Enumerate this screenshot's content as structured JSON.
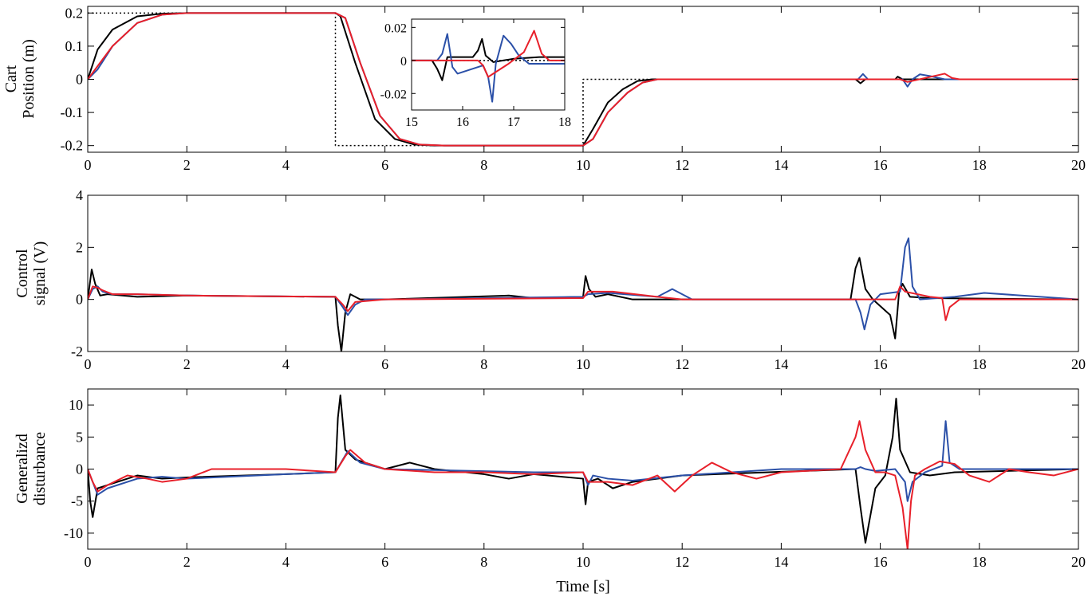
{
  "chart_data": [
    {
      "id": "position",
      "type": "line",
      "ylabel_lines": [
        "Cart",
        "Position (m)"
      ],
      "xlim": [
        0,
        20
      ],
      "ylim": [
        -0.22,
        0.22
      ],
      "xticks": [
        0,
        2,
        4,
        6,
        8,
        10,
        12,
        14,
        16,
        18,
        20
      ],
      "xtick_labels": [
        "0",
        "2",
        "4",
        "6",
        "8",
        "10",
        "12",
        "14",
        "16",
        "18",
        "20"
      ],
      "yticks": [
        -0.2,
        -0.1,
        0,
        0.1,
        0.2
      ],
      "ytick_labels": [
        "-0.2",
        "-0.1",
        "0",
        "0.1",
        "0.2"
      ],
      "series": [
        {
          "name": "reference",
          "color": "#000000",
          "dashed": true,
          "x": [
            0,
            5,
            5,
            10,
            10,
            20
          ],
          "y": [
            0.2,
            0.2,
            -0.2,
            -0.2,
            0,
            0
          ]
        },
        {
          "name": "black",
          "color": "#000000",
          "x": [
            0,
            0.2,
            0.5,
            1.0,
            1.5,
            2,
            5,
            5.1,
            5.4,
            5.8,
            6.2,
            6.6,
            7.0,
            10,
            10.2,
            10.5,
            10.8,
            11.1,
            11.4,
            15.5,
            15.6,
            15.7,
            16.3,
            16.35,
            16.45,
            17,
            20
          ],
          "y": [
            0,
            0.09,
            0.15,
            0.19,
            0.198,
            0.2,
            0.2,
            0.19,
            0.05,
            -0.12,
            -0.18,
            -0.197,
            -0.2,
            -0.2,
            -0.15,
            -0.07,
            -0.03,
            -0.005,
            0,
            0,
            -0.012,
            0,
            0,
            0.008,
            0,
            0,
            0
          ]
        },
        {
          "name": "blue",
          "color": "#2b50a8",
          "x": [
            0,
            0.2,
            0.5,
            1.0,
            1.5,
            2,
            5,
            5.2,
            5.5,
            5.9,
            6.3,
            6.7,
            7.2,
            10,
            10.2,
            10.5,
            10.9,
            11.2,
            11.5,
            15.55,
            15.65,
            15.75,
            16.45,
            16.55,
            16.65,
            16.8,
            17.0,
            17.3,
            20
          ],
          "y": [
            0,
            0.03,
            0.1,
            0.17,
            0.195,
            0.2,
            0.2,
            0.185,
            0.05,
            -0.11,
            -0.18,
            -0.197,
            -0.2,
            -0.2,
            -0.18,
            -0.1,
            -0.04,
            -0.01,
            0,
            0,
            0.016,
            0,
            0,
            -0.022,
            0,
            0.015,
            0.01,
            0,
            0
          ]
        },
        {
          "name": "red",
          "color": "#e8202a",
          "x": [
            0,
            0.2,
            0.5,
            1.0,
            1.5,
            2,
            5,
            5.2,
            5.5,
            5.9,
            6.3,
            6.7,
            7.2,
            10,
            10.2,
            10.5,
            10.9,
            11.2,
            11.5,
            16.4,
            16.55,
            16.7,
            17.3,
            17.45,
            17.6,
            17.9,
            20
          ],
          "y": [
            0,
            0.04,
            0.1,
            0.17,
            0.195,
            0.2,
            0.2,
            0.185,
            0.05,
            -0.11,
            -0.18,
            -0.197,
            -0.2,
            -0.2,
            -0.18,
            -0.1,
            -0.04,
            -0.01,
            0,
            0,
            -0.008,
            -0.003,
            0.017,
            0.004,
            0,
            0,
            0
          ]
        }
      ],
      "inset": {
        "xlim": [
          15,
          18
        ],
        "ylim": [
          -0.03,
          0.025
        ],
        "xticks": [
          15,
          16,
          17,
          18
        ],
        "xtick_labels": [
          "15",
          "16",
          "17",
          "18"
        ],
        "yticks": [
          -0.02,
          0,
          0.02
        ],
        "ytick_labels": [
          "-0.02",
          "0",
          "0.02"
        ],
        "series": [
          {
            "name": "reference",
            "color": "#000000",
            "dashed": true,
            "x": [
              15,
              18
            ],
            "y": [
              0,
              0
            ]
          },
          {
            "name": "black",
            "color": "#000000",
            "x": [
              15,
              15.4,
              15.5,
              15.6,
              15.7,
              15.8,
              16.2,
              16.3,
              16.38,
              16.45,
              16.6,
              17.0,
              17.5,
              18
            ],
            "y": [
              0,
              0,
              -0.005,
              -0.012,
              0.002,
              0.002,
              0.002,
              0.006,
              0.013,
              0.003,
              -0.001,
              0.001,
              0.002,
              0.002
            ]
          },
          {
            "name": "blue",
            "color": "#2b50a8",
            "x": [
              15,
              15.5,
              15.6,
              15.7,
              15.8,
              15.9,
              16.4,
              16.5,
              16.58,
              16.65,
              16.8,
              16.95,
              17.1,
              17.3,
              17.6,
              18
            ],
            "y": [
              0,
              0,
              0.004,
              0.016,
              -0.004,
              -0.008,
              -0.003,
              -0.01,
              -0.025,
              -0.002,
              0.015,
              0.01,
              0.003,
              -0.002,
              -0.002,
              -0.002
            ]
          },
          {
            "name": "red",
            "color": "#e8202a",
            "x": [
              15,
              16.3,
              16.4,
              16.5,
              16.6,
              16.9,
              17.2,
              17.4,
              17.55,
              17.7,
              18
            ],
            "y": [
              0,
              0,
              -0.003,
              -0.01,
              -0.008,
              -0.002,
              0.005,
              0.018,
              0.004,
              0,
              0
            ]
          }
        ]
      }
    },
    {
      "id": "control",
      "type": "line",
      "ylabel_lines": [
        "Control",
        "signal (V)"
      ],
      "xlim": [
        0,
        20
      ],
      "ylim": [
        -2,
        4
      ],
      "xticks": [
        0,
        2,
        4,
        6,
        8,
        10,
        12,
        14,
        16,
        18,
        20
      ],
      "xtick_labels": [
        "0",
        "2",
        "4",
        "6",
        "8",
        "10",
        "12",
        "14",
        "16",
        "18",
        "20"
      ],
      "yticks": [
        -2,
        0,
        2,
        4
      ],
      "ytick_labels": [
        "-2",
        "0",
        "2",
        "4"
      ],
      "series": [
        {
          "name": "black",
          "color": "#000000",
          "x": [
            0,
            0.08,
            0.15,
            0.25,
            0.4,
            1,
            2,
            5,
            5.05,
            5.12,
            5.2,
            5.3,
            5.5,
            6,
            8.5,
            9,
            10,
            10.05,
            10.12,
            10.25,
            10.5,
            11,
            12,
            15.4,
            15.5,
            15.58,
            15.7,
            15.85,
            16.2,
            16.3,
            16.38,
            16.45,
            16.6,
            17,
            20
          ],
          "y": [
            0,
            1.15,
            0.6,
            0.15,
            0.2,
            0.1,
            0.15,
            0.1,
            -1,
            -2,
            -0.5,
            0.2,
            0,
            0,
            0.15,
            0.05,
            0.1,
            0.9,
            0.4,
            0.1,
            0.2,
            0,
            0,
            0,
            1.2,
            1.6,
            0.4,
            0,
            -0.6,
            -1.5,
            0.3,
            0.6,
            0.1,
            0.05,
            0
          ]
        },
        {
          "name": "blue",
          "color": "#2b50a8",
          "x": [
            0,
            0.1,
            0.2,
            0.3,
            0.5,
            1,
            2,
            5,
            5.15,
            5.25,
            5.4,
            5.6,
            6,
            10,
            10.1,
            10.5,
            11.5,
            11.8,
            12.2,
            15.5,
            15.6,
            15.68,
            15.8,
            16,
            16.4,
            16.5,
            16.57,
            16.65,
            16.8,
            17.5,
            18.1,
            20
          ],
          "y": [
            0,
            0.4,
            0.5,
            0.3,
            0.2,
            0.2,
            0.15,
            0.1,
            -0.3,
            -0.6,
            -0.2,
            0,
            0,
            0.1,
            0.2,
            0.25,
            0.1,
            0.4,
            0,
            0,
            -0.5,
            -1.15,
            -0.2,
            0.2,
            0.3,
            2.0,
            2.35,
            0.5,
            0,
            0.1,
            0.25,
            0
          ]
        },
        {
          "name": "red",
          "color": "#e8202a",
          "x": [
            0,
            0.1,
            0.2,
            0.3,
            0.5,
            1,
            2,
            5,
            5.15,
            5.25,
            5.4,
            6,
            10,
            10.1,
            10.6,
            11.5,
            12,
            16.3,
            16.4,
            16.5,
            17,
            17.25,
            17.32,
            17.4,
            17.6,
            20
          ],
          "y": [
            0,
            0.5,
            0.45,
            0.35,
            0.2,
            0.2,
            0.15,
            0.1,
            -0.2,
            -0.45,
            -0.1,
            0,
            0.05,
            0.3,
            0.3,
            0.1,
            0,
            0,
            0.5,
            0.3,
            0.1,
            0.05,
            -0.8,
            -0.3,
            0,
            0
          ]
        }
      ]
    },
    {
      "id": "disturbance",
      "type": "line",
      "ylabel_lines": [
        "Generalizd",
        "disturbance"
      ],
      "xlabel": "Time [s]",
      "xlim": [
        0,
        20
      ],
      "ylim": [
        -12.5,
        12.5
      ],
      "xticks": [
        0,
        2,
        4,
        6,
        8,
        10,
        12,
        14,
        16,
        18,
        20
      ],
      "xtick_labels": [
        "0",
        "2",
        "4",
        "6",
        "8",
        "10",
        "12",
        "14",
        "16",
        "18",
        "20"
      ],
      "yticks": [
        -10,
        -5,
        0,
        5,
        10
      ],
      "ytick_labels": [
        "-10",
        "-5",
        "0",
        "5",
        "10"
      ],
      "series": [
        {
          "name": "black",
          "color": "#000000",
          "x": [
            0,
            0.05,
            0.1,
            0.2,
            0.4,
            0.8,
            1,
            1.5,
            2,
            4,
            5,
            5.05,
            5.1,
            5.2,
            5.4,
            6,
            6.5,
            7,
            8,
            8.5,
            9,
            10,
            10.05,
            10.1,
            10.3,
            10.6,
            11,
            12,
            15.5,
            15.6,
            15.7,
            15.9,
            16.1,
            16.25,
            16.32,
            16.4,
            16.6,
            17,
            17.5,
            20
          ],
          "y": [
            0,
            -5,
            -7.5,
            -3,
            -2.5,
            -1.5,
            -1,
            -1.5,
            -1.3,
            -0.8,
            -0.5,
            8,
            11.5,
            3,
            1.5,
            0,
            1,
            0,
            -0.8,
            -1.5,
            -0.8,
            -1.5,
            -5.5,
            -2,
            -1.5,
            -3,
            -2,
            -1,
            0,
            -6,
            -11.5,
            -3,
            -1,
            5,
            11,
            3,
            -0.5,
            -1,
            -0.5,
            0
          ]
        },
        {
          "name": "blue",
          "color": "#2b50a8",
          "x": [
            0,
            0.1,
            0.2,
            0.4,
            1,
            1.5,
            2,
            4,
            5,
            5.15,
            5.25,
            5.5,
            6,
            9,
            10,
            10.1,
            10.2,
            10.5,
            11,
            12,
            14,
            15.5,
            15.6,
            15.7,
            15.9,
            16.3,
            16.5,
            16.55,
            16.65,
            16.9,
            17.25,
            17.32,
            17.4,
            17.6,
            20
          ],
          "y": [
            0,
            -2,
            -4,
            -3,
            -1.5,
            -1.2,
            -1.5,
            -0.8,
            -0.5,
            1.5,
            2.8,
            1,
            0,
            -0.5,
            -0.5,
            -2.5,
            -1,
            -1.5,
            -1.8,
            -1,
            0,
            0,
            0.3,
            0,
            -0.3,
            0,
            -2,
            -5,
            -2,
            -0.5,
            0.5,
            7.5,
            1,
            0,
            0
          ]
        },
        {
          "name": "red",
          "color": "#e8202a",
          "x": [
            0,
            0.1,
            0.2,
            0.4,
            0.8,
            1.2,
            1.5,
            2,
            2.5,
            3,
            4,
            5,
            5.2,
            5.3,
            5.6,
            6,
            7,
            8,
            9,
            10,
            10.1,
            10.5,
            11,
            11.5,
            11.85,
            12.2,
            12.6,
            13,
            13.5,
            14,
            15.2,
            15.5,
            15.58,
            15.7,
            15.9,
            16.1,
            16.3,
            16.45,
            16.55,
            16.62,
            16.7,
            16.9,
            17.2,
            17.5,
            17.8,
            18.2,
            18.6,
            19,
            19.5,
            20
          ],
          "y": [
            0,
            -2,
            -3.5,
            -2.5,
            -1,
            -1.5,
            -2,
            -1.5,
            0,
            0,
            0,
            -0.5,
            2,
            3,
            1,
            0,
            -0.5,
            -0.5,
            -0.8,
            -0.5,
            -2,
            -2,
            -2.5,
            -1,
            -3.5,
            -1,
            1,
            -0.5,
            -1.5,
            -0.5,
            0,
            5,
            7.5,
            3,
            -0.5,
            -0.5,
            -1,
            -6,
            -12.5,
            -5,
            -1,
            0,
            1.2,
            0.8,
            -1,
            -2,
            0,
            -0.5,
            -1,
            0
          ]
        }
      ]
    }
  ]
}
